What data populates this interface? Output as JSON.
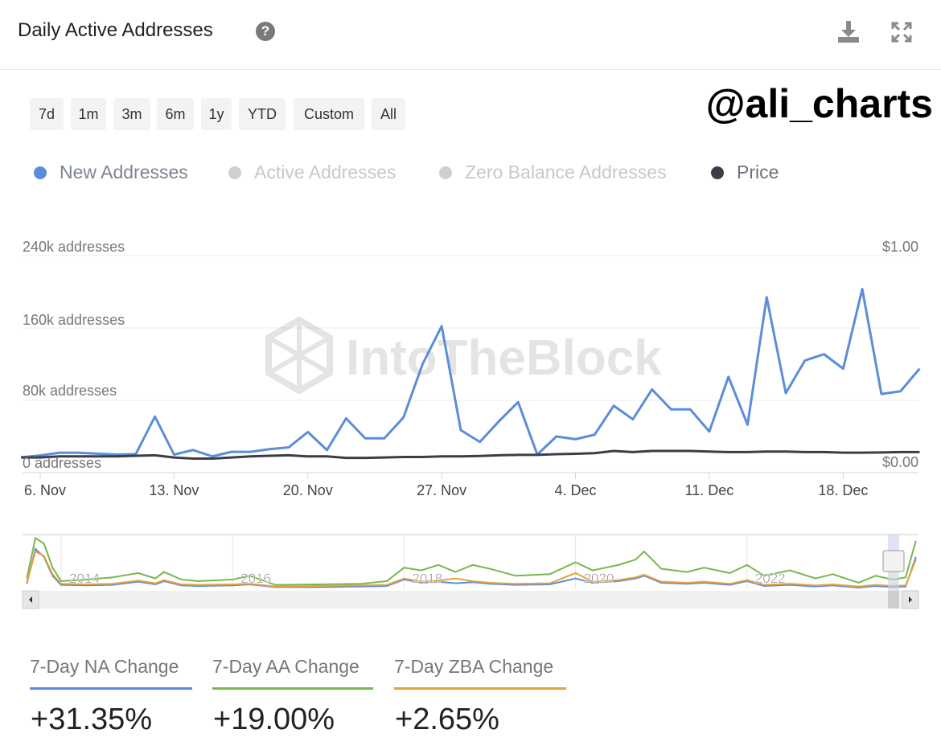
{
  "header": {
    "title": "Daily Active Addresses",
    "help_icon": "question-circle-icon",
    "download_icon": "download-icon",
    "fullscreen_icon": "expand-icon"
  },
  "watermark_handle": "@ali_charts",
  "watermark_logo": "IntoTheBlock",
  "range_buttons": [
    "7d",
    "1m",
    "3m",
    "6m",
    "1y",
    "YTD",
    "Custom",
    "All"
  ],
  "legend": [
    {
      "label": "New Addresses",
      "color": "#5b8dd9",
      "active": true
    },
    {
      "label": "Active Addresses",
      "color": "#cfcfcf",
      "active": false
    },
    {
      "label": "Zero Balance Addresses",
      "color": "#cfcfcf",
      "active": false
    },
    {
      "label": "Price",
      "color": "#3a3f47",
      "active": true
    }
  ],
  "chart_data": {
    "type": "line",
    "left_axis": {
      "ticks": [
        "0 addresses",
        "80k addresses",
        "160k addresses",
        "240k addresses"
      ],
      "values": [
        0,
        80000,
        160000,
        240000
      ],
      "range": [
        0,
        240000
      ]
    },
    "right_axis": {
      "ticks": [
        "$0.00",
        "$1.00"
      ],
      "values": [
        0,
        1
      ],
      "range": [
        0,
        1
      ]
    },
    "x_ticks": [
      "6. Nov",
      "13. Nov",
      "20. Nov",
      "27. Nov",
      "4. Dec",
      "11. Dec",
      "18. Dec"
    ],
    "x": [
      "5 Nov",
      "6 Nov",
      "7 Nov",
      "8 Nov",
      "9 Nov",
      "10 Nov",
      "11 Nov",
      "12 Nov",
      "13 Nov",
      "14 Nov",
      "15 Nov",
      "16 Nov",
      "17 Nov",
      "18 Nov",
      "19 Nov",
      "20 Nov",
      "21 Nov",
      "22 Nov",
      "23 Nov",
      "24 Nov",
      "25 Nov",
      "26 Nov",
      "27 Nov",
      "28 Nov",
      "29 Nov",
      "30 Nov",
      "1 Dec",
      "2 Dec",
      "3 Dec",
      "4 Dec",
      "5 Dec",
      "6 Dec",
      "7 Dec",
      "8 Dec",
      "9 Dec",
      "10 Dec",
      "11 Dec",
      "12 Dec",
      "13 Dec",
      "14 Dec",
      "15 Dec",
      "16 Dec",
      "17 Dec",
      "18 Dec",
      "19 Dec",
      "20 Dec",
      "21 Dec",
      "22 Dec"
    ],
    "series": [
      {
        "name": "New Addresses",
        "color": "#5b8dd9",
        "axis": "left",
        "values": [
          17000,
          19000,
          22000,
          22000,
          21000,
          20000,
          20500,
          62000,
          20000,
          25000,
          18000,
          23000,
          23000,
          26000,
          28000,
          45000,
          25000,
          60000,
          38000,
          38000,
          61000,
          120000,
          162000,
          47000,
          34000,
          57000,
          78000,
          20000,
          40000,
          37000,
          42000,
          74000,
          59000,
          92000,
          70000,
          70000,
          45500,
          106000,
          53000,
          194000,
          88000,
          124000,
          131000,
          115000,
          203000,
          87000,
          90000,
          115000
        ]
      },
      {
        "name": "Price",
        "color": "#3a3f47",
        "axis": "right",
        "values": [
          0.07,
          0.07,
          0.075,
          0.075,
          0.075,
          0.075,
          0.078,
          0.08,
          0.07,
          0.065,
          0.065,
          0.07,
          0.075,
          0.078,
          0.08,
          0.075,
          0.075,
          0.068,
          0.068,
          0.07,
          0.072,
          0.072,
          0.075,
          0.075,
          0.077,
          0.08,
          0.082,
          0.082,
          0.085,
          0.087,
          0.09,
          0.1,
          0.095,
          0.1,
          0.1,
          0.1,
          0.097,
          0.095,
          0.095,
          0.097,
          0.097,
          0.095,
          0.095,
          0.092,
          0.092,
          0.093,
          0.095,
          0.095
        ]
      }
    ],
    "navigator": {
      "x_ticks": [
        "2014",
        "2016",
        "2018",
        "2020",
        "2022"
      ],
      "years": [
        2013.6,
        2013.7,
        2013.8,
        2013.9,
        2014.0,
        2014.3,
        2014.6,
        2014.9,
        2015.1,
        2015.2,
        2015.4,
        2015.6,
        2016.0,
        2016.2,
        2016.5,
        2017.0,
        2017.5,
        2017.8,
        2018.0,
        2018.2,
        2018.4,
        2018.6,
        2018.8,
        2019.0,
        2019.3,
        2019.7,
        2020.0,
        2020.2,
        2020.5,
        2020.7,
        2020.8,
        2021.0,
        2021.3,
        2021.5,
        2021.8,
        2022.0,
        2022.2,
        2022.5,
        2022.8,
        2023.0,
        2023.3,
        2023.5,
        2023.7,
        2023.85,
        2023.97
      ],
      "series": [
        {
          "name": "Active Addresses",
          "color": "#78b84d",
          "values": [
            20,
            95,
            85,
            40,
            15,
            18,
            22,
            30,
            20,
            32,
            18,
            15,
            18,
            25,
            8,
            9,
            10,
            15,
            40,
            35,
            45,
            32,
            45,
            38,
            25,
            28,
            50,
            35,
            45,
            55,
            70,
            38,
            32,
            40,
            30,
            45,
            25,
            35,
            20,
            28,
            12,
            25,
            18,
            22,
            90
          ]
        },
        {
          "name": "New Addresses",
          "color": "#5b8dd9",
          "values": [
            10,
            75,
            60,
            25,
            8,
            7,
            8,
            14,
            9,
            15,
            7,
            6,
            7,
            9,
            4,
            4,
            5,
            6,
            18,
            12,
            14,
            11,
            13,
            10,
            8,
            9,
            20,
            12,
            15,
            20,
            25,
            12,
            10,
            12,
            8,
            15,
            6,
            8,
            5,
            7,
            3,
            6,
            4,
            5,
            60
          ]
        },
        {
          "name": "Zero Balance Addresses",
          "color": "#e6a23c",
          "values": [
            12,
            70,
            62,
            28,
            10,
            9,
            10,
            16,
            11,
            17,
            9,
            8,
            9,
            10,
            5,
            6,
            7,
            8,
            20,
            14,
            16,
            20,
            15,
            12,
            10,
            11,
            30,
            14,
            17,
            22,
            27,
            14,
            12,
            14,
            10,
            17,
            8,
            10,
            7,
            9,
            5,
            8,
            6,
            7,
            55
          ]
        }
      ]
    }
  },
  "stats": [
    {
      "label": "7-Day NA Change",
      "value": "+31.35%",
      "color": "#5b8dd9"
    },
    {
      "label": "7-Day AA Change",
      "value": "+19.00%",
      "color": "#78b84d"
    },
    {
      "label": "7-Day ZBA Change",
      "value": "+2.65%",
      "color": "#e6a23c"
    }
  ]
}
